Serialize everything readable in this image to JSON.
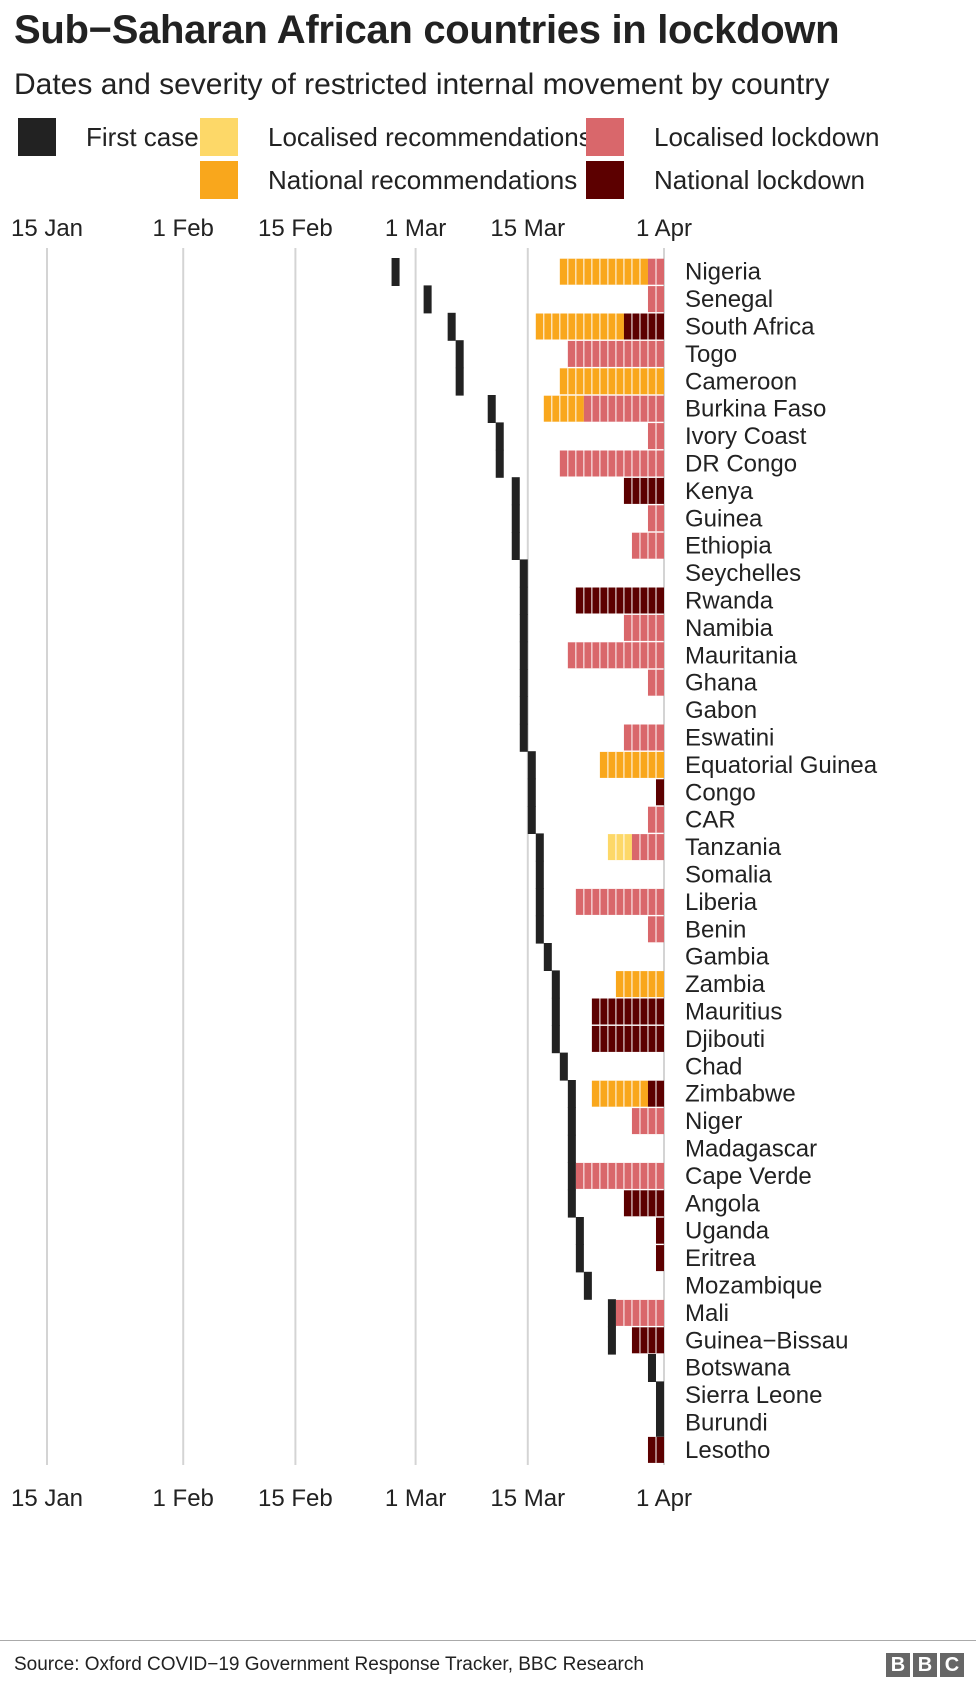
{
  "title": "Sub−Saharan African countries in lockdown",
  "subtitle": "Dates and severity of restricted internal movement by country",
  "legend": [
    {
      "key": "first",
      "label": "First case",
      "color": "#222222"
    },
    {
      "key": "lrec",
      "label": "Localised recommendations",
      "color": "#fdd868"
    },
    {
      "key": "lloc",
      "label": "Localised lockdown",
      "color": "#d9676b"
    },
    {
      "key": "nrec",
      "label": "National recommendations",
      "color": "#f9a71c"
    },
    {
      "key": "nloc",
      "label": "National lockdown",
      "color": "#5c0000"
    }
  ],
  "source": "Source: Oxford COVID−19 Government Response Tracker, BBC Research",
  "logo": [
    "B",
    "B",
    "C"
  ],
  "chart_data": {
    "type": "table",
    "title": "Sub−Saharan African countries in lockdown",
    "x_axis": {
      "type": "date",
      "range": [
        "2020-01-15",
        "2020-04-01"
      ],
      "ticks": [
        {
          "date": "2020-01-15",
          "label": "15 Jan"
        },
        {
          "date": "2020-02-01",
          "label": "1 Feb"
        },
        {
          "date": "2020-02-15",
          "label": "15 Feb"
        },
        {
          "date": "2020-03-01",
          "label": "1 Mar"
        },
        {
          "date": "2020-03-15",
          "label": "15 Mar"
        },
        {
          "date": "2020-04-01",
          "label": "1 Apr"
        }
      ],
      "grid": true
    },
    "categories_order": [
      "first",
      "lrec",
      "nrec",
      "lloc",
      "nloc"
    ],
    "countries": [
      {
        "name": "Nigeria",
        "first_case": "2020-02-27",
        "segments": [
          [
            "nrec",
            "2020-03-19",
            "2020-03-30"
          ],
          [
            "lloc",
            "2020-03-30",
            "2020-04-01"
          ]
        ]
      },
      {
        "name": "Senegal",
        "first_case": "2020-03-02",
        "segments": [
          [
            "lloc",
            "2020-03-30",
            "2020-04-01"
          ]
        ]
      },
      {
        "name": "South Africa",
        "first_case": "2020-03-05",
        "segments": [
          [
            "nrec",
            "2020-03-16",
            "2020-03-27"
          ],
          [
            "nloc",
            "2020-03-27",
            "2020-04-01"
          ]
        ]
      },
      {
        "name": "Togo",
        "first_case": "2020-03-06",
        "segments": [
          [
            "lloc",
            "2020-03-20",
            "2020-04-01"
          ]
        ]
      },
      {
        "name": "Cameroon",
        "first_case": "2020-03-06",
        "segments": [
          [
            "nrec",
            "2020-03-19",
            "2020-04-01"
          ]
        ]
      },
      {
        "name": "Burkina Faso",
        "first_case": "2020-03-10",
        "segments": [
          [
            "nrec",
            "2020-03-17",
            "2020-03-22"
          ],
          [
            "lloc",
            "2020-03-22",
            "2020-04-01"
          ]
        ]
      },
      {
        "name": "Ivory Coast",
        "first_case": "2020-03-11",
        "segments": [
          [
            "lloc",
            "2020-03-30",
            "2020-04-01"
          ]
        ]
      },
      {
        "name": "DR Congo",
        "first_case": "2020-03-11",
        "segments": [
          [
            "lloc",
            "2020-03-19",
            "2020-04-01"
          ]
        ]
      },
      {
        "name": "Kenya",
        "first_case": "2020-03-13",
        "segments": [
          [
            "nloc",
            "2020-03-27",
            "2020-04-01"
          ]
        ]
      },
      {
        "name": "Guinea",
        "first_case": "2020-03-13",
        "segments": [
          [
            "lloc",
            "2020-03-30",
            "2020-04-01"
          ]
        ]
      },
      {
        "name": "Ethiopia",
        "first_case": "2020-03-13",
        "segments": [
          [
            "lloc",
            "2020-03-28",
            "2020-04-01"
          ]
        ]
      },
      {
        "name": "Seychelles",
        "first_case": "2020-03-14",
        "segments": []
      },
      {
        "name": "Rwanda",
        "first_case": "2020-03-14",
        "segments": [
          [
            "nloc",
            "2020-03-21",
            "2020-04-01"
          ]
        ]
      },
      {
        "name": "Namibia",
        "first_case": "2020-03-14",
        "segments": [
          [
            "lloc",
            "2020-03-27",
            "2020-04-01"
          ]
        ]
      },
      {
        "name": "Mauritania",
        "first_case": "2020-03-14",
        "segments": [
          [
            "lloc",
            "2020-03-20",
            "2020-04-01"
          ]
        ]
      },
      {
        "name": "Ghana",
        "first_case": "2020-03-14",
        "segments": [
          [
            "lloc",
            "2020-03-30",
            "2020-04-01"
          ]
        ]
      },
      {
        "name": "Gabon",
        "first_case": "2020-03-14",
        "segments": []
      },
      {
        "name": "Eswatini",
        "first_case": "2020-03-14",
        "segments": [
          [
            "lloc",
            "2020-03-27",
            "2020-04-01"
          ]
        ]
      },
      {
        "name": "Equatorial Guinea",
        "first_case": "2020-03-15",
        "segments": [
          [
            "nrec",
            "2020-03-24",
            "2020-04-01"
          ]
        ]
      },
      {
        "name": "Congo",
        "first_case": "2020-03-15",
        "segments": [
          [
            "nloc",
            "2020-03-31",
            "2020-04-01"
          ]
        ]
      },
      {
        "name": "CAR",
        "first_case": "2020-03-15",
        "segments": [
          [
            "lloc",
            "2020-03-30",
            "2020-04-01"
          ]
        ]
      },
      {
        "name": "Tanzania",
        "first_case": "2020-03-16",
        "segments": [
          [
            "lrec",
            "2020-03-25",
            "2020-03-28"
          ],
          [
            "lloc",
            "2020-03-28",
            "2020-04-01"
          ]
        ]
      },
      {
        "name": "Somalia",
        "first_case": "2020-03-16",
        "segments": []
      },
      {
        "name": "Liberia",
        "first_case": "2020-03-16",
        "segments": [
          [
            "lloc",
            "2020-03-21",
            "2020-04-01"
          ]
        ]
      },
      {
        "name": "Benin",
        "first_case": "2020-03-16",
        "segments": [
          [
            "lloc",
            "2020-03-30",
            "2020-04-01"
          ]
        ]
      },
      {
        "name": "Gambia",
        "first_case": "2020-03-17",
        "segments": []
      },
      {
        "name": "Zambia",
        "first_case": "2020-03-18",
        "segments": [
          [
            "nrec",
            "2020-03-26",
            "2020-04-01"
          ]
        ]
      },
      {
        "name": "Mauritius",
        "first_case": "2020-03-18",
        "segments": [
          [
            "nloc",
            "2020-03-23",
            "2020-04-01"
          ]
        ]
      },
      {
        "name": "Djibouti",
        "first_case": "2020-03-18",
        "segments": [
          [
            "nloc",
            "2020-03-23",
            "2020-04-01"
          ]
        ]
      },
      {
        "name": "Chad",
        "first_case": "2020-03-19",
        "segments": []
      },
      {
        "name": "Zimbabwe",
        "first_case": "2020-03-20",
        "segments": [
          [
            "nrec",
            "2020-03-23",
            "2020-03-30"
          ],
          [
            "nloc",
            "2020-03-30",
            "2020-04-01"
          ]
        ]
      },
      {
        "name": "Niger",
        "first_case": "2020-03-20",
        "segments": [
          [
            "lloc",
            "2020-03-28",
            "2020-04-01"
          ]
        ]
      },
      {
        "name": "Madagascar",
        "first_case": "2020-03-20",
        "segments": []
      },
      {
        "name": "Cape Verde",
        "first_case": "2020-03-20",
        "segments": [
          [
            "lloc",
            "2020-03-21",
            "2020-04-01"
          ]
        ]
      },
      {
        "name": "Angola",
        "first_case": "2020-03-20",
        "segments": [
          [
            "nloc",
            "2020-03-27",
            "2020-04-01"
          ]
        ]
      },
      {
        "name": "Uganda",
        "first_case": "2020-03-21",
        "segments": [
          [
            "nloc",
            "2020-03-31",
            "2020-04-01"
          ]
        ]
      },
      {
        "name": "Eritrea",
        "first_case": "2020-03-21",
        "segments": [
          [
            "nloc",
            "2020-03-31",
            "2020-04-01"
          ]
        ]
      },
      {
        "name": "Mozambique",
        "first_case": "2020-03-22",
        "segments": []
      },
      {
        "name": "Mali",
        "first_case": "2020-03-25",
        "segments": [
          [
            "lloc",
            "2020-03-26",
            "2020-04-01"
          ]
        ]
      },
      {
        "name": "Guinea−Bissau",
        "first_case": "2020-03-25",
        "segments": [
          [
            "nloc",
            "2020-03-28",
            "2020-04-01"
          ]
        ]
      },
      {
        "name": "Botswana",
        "first_case": "2020-03-30",
        "segments": []
      },
      {
        "name": "Sierra Leone",
        "first_case": "2020-03-31",
        "segments": []
      },
      {
        "name": "Burundi",
        "first_case": "2020-03-31",
        "segments": []
      },
      {
        "name": "Lesotho",
        "first_case": null,
        "segments": [
          [
            "nloc",
            "2020-03-30",
            "2020-04-01"
          ]
        ]
      }
    ]
  }
}
